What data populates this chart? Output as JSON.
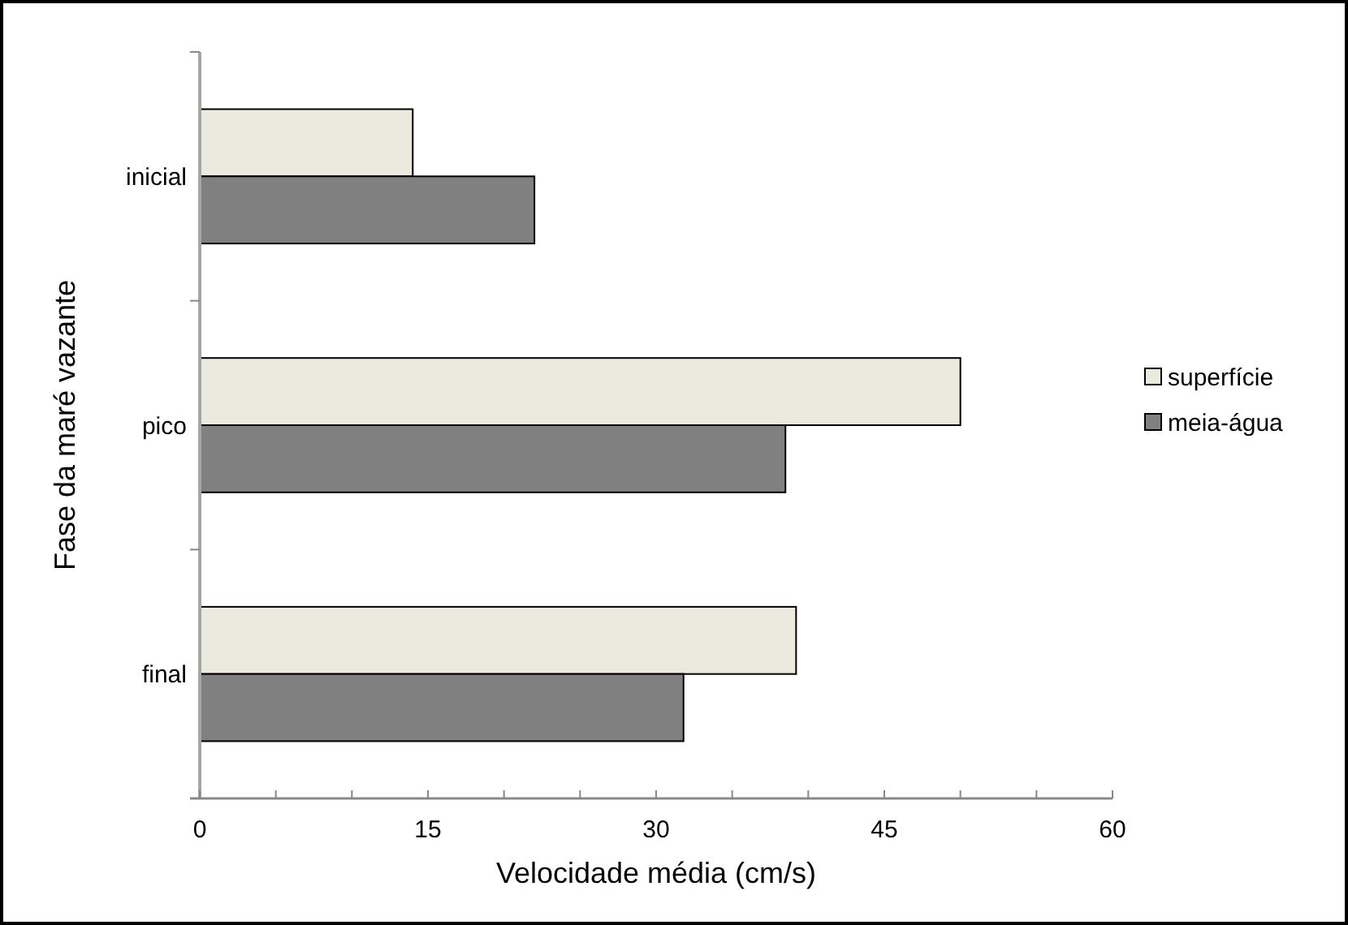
{
  "chart_data": {
    "type": "bar",
    "orientation": "horizontal",
    "xlabel": "Velocidade média (cm/s)",
    "ylabel": "Fase da maré vazante",
    "categories": [
      "inicial",
      "pico",
      "final"
    ],
    "series": [
      {
        "name": "superfície",
        "color": "#eceadf",
        "values": [
          14,
          50,
          39.2
        ]
      },
      {
        "name": "meia-água",
        "color": "#808080",
        "values": [
          22,
          38.5,
          31.8
        ]
      }
    ],
    "xlim": [
      0,
      60
    ],
    "xticks": [
      0,
      {
        "value": 5,
        "label": null
      },
      {
        "value": 10,
        "label": null
      },
      15,
      {
        "value": 20,
        "label": null
      },
      {
        "value": 25,
        "label": null
      },
      30,
      {
        "value": 35,
        "label": null
      },
      {
        "value": 40,
        "label": null
      },
      45,
      {
        "value": 50,
        "label": null
      },
      {
        "value": 55,
        "label": null
      },
      60
    ],
    "grid": false,
    "legend": "right"
  }
}
